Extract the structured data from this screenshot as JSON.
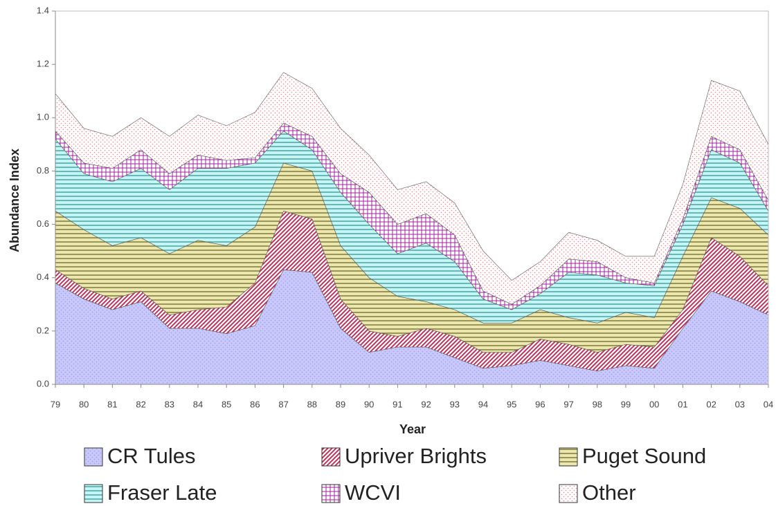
{
  "chart_data": {
    "type": "stacked_area",
    "x_label": "Year",
    "y_label": "Abundance Index",
    "categories": [
      "79",
      "80",
      "81",
      "82",
      "83",
      "84",
      "85",
      "86",
      "87",
      "88",
      "89",
      "90",
      "91",
      "92",
      "93",
      "94",
      "95",
      "96",
      "97",
      "98",
      "99",
      "00",
      "01",
      "02",
      "03",
      "04"
    ],
    "ylim": [
      0,
      1.4
    ],
    "yticks": [
      {
        "value": 0,
        "label": "0.0"
      },
      {
        "value": 0.2,
        "label": "0.2"
      },
      {
        "value": 0.4,
        "label": "0.4"
      },
      {
        "value": 0.6,
        "label": "0.6"
      },
      {
        "value": 0.8,
        "label": "0.8"
      },
      {
        "value": 1,
        "label": "1.0"
      },
      {
        "value": 1.2,
        "label": "1.2"
      },
      {
        "value": 1.4,
        "label": "1.4"
      }
    ],
    "grid": false,
    "series": [
      {
        "name": "CR Tules",
        "color": "#9a9af0",
        "pattern": "dots",
        "values": [
          0.38,
          0.32,
          0.28,
          0.31,
          0.21,
          0.21,
          0.19,
          0.22,
          0.43,
          0.42,
          0.21,
          0.12,
          0.14,
          0.14,
          0.1,
          0.06,
          0.07,
          0.09,
          0.07,
          0.05,
          0.07,
          0.06,
          0.21,
          0.35,
          0.31,
          0.26
        ]
      },
      {
        "name": "Upriver Brights",
        "color": "#c0305a",
        "pattern": "diagonal",
        "values": [
          0.05,
          0.04,
          0.04,
          0.04,
          0.05,
          0.07,
          0.1,
          0.16,
          0.22,
          0.2,
          0.11,
          0.08,
          0.04,
          0.07,
          0.08,
          0.06,
          0.05,
          0.08,
          0.08,
          0.07,
          0.08,
          0.08,
          0.07,
          0.2,
          0.17,
          0.11
        ]
      },
      {
        "name": "Puget Sound",
        "color": "#6b6b20",
        "pattern": "horizontal",
        "values": [
          0.22,
          0.22,
          0.2,
          0.2,
          0.23,
          0.26,
          0.23,
          0.21,
          0.18,
          0.18,
          0.2,
          0.2,
          0.15,
          0.1,
          0.1,
          0.11,
          0.11,
          0.11,
          0.1,
          0.11,
          0.12,
          0.11,
          0.2,
          0.15,
          0.18,
          0.19
        ]
      },
      {
        "name": "Fraser Late",
        "color": "#2a9a9a",
        "pattern": "horizontal",
        "values": [
          0.27,
          0.21,
          0.24,
          0.26,
          0.24,
          0.27,
          0.29,
          0.24,
          0.12,
          0.08,
          0.2,
          0.2,
          0.16,
          0.22,
          0.18,
          0.09,
          0.05,
          0.06,
          0.17,
          0.18,
          0.11,
          0.12,
          0.12,
          0.18,
          0.17,
          0.09
        ]
      },
      {
        "name": "WCVI",
        "color": "#a020a0",
        "pattern": "grid",
        "values": [
          0.03,
          0.04,
          0.05,
          0.07,
          0.06,
          0.05,
          0.03,
          0.02,
          0.03,
          0.05,
          0.07,
          0.12,
          0.11,
          0.11,
          0.1,
          0.03,
          0.02,
          0.03,
          0.05,
          0.05,
          0.02,
          0.01,
          0.02,
          0.05,
          0.05,
          0.04
        ]
      },
      {
        "name": "Other",
        "color": "#f08090",
        "pattern": "dots",
        "values": [
          0.14,
          0.13,
          0.12,
          0.12,
          0.14,
          0.15,
          0.13,
          0.17,
          0.19,
          0.18,
          0.17,
          0.14,
          0.13,
          0.12,
          0.12,
          0.15,
          0.09,
          0.09,
          0.1,
          0.08,
          0.08,
          0.1,
          0.13,
          0.21,
          0.22,
          0.21
        ]
      }
    ]
  }
}
